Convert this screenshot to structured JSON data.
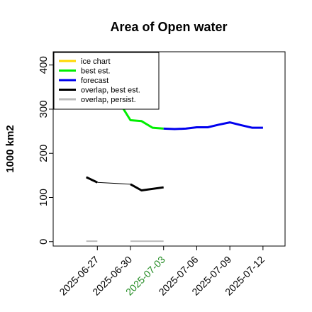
{
  "chart_data": {
    "type": "line",
    "title": "Area of Open water",
    "ylabel": "1000 km2",
    "xlabel": "",
    "ylim": [
      -10,
      430
    ],
    "y_ticks": [
      0,
      100,
      200,
      300,
      400
    ],
    "x_range": [
      "2025-06-23",
      "2025-07-14"
    ],
    "x_ticks": [
      {
        "date": "2025-06-27",
        "label": "2025-06-27",
        "color": "#000000"
      },
      {
        "date": "2025-06-30",
        "label": "2025-06-30",
        "color": "#000000"
      },
      {
        "date": "2025-07-03",
        "label": "2025-07-03",
        "color": "#228b22"
      },
      {
        "date": "2025-07-06",
        "label": "2025-07-06",
        "color": "#000000"
      },
      {
        "date": "2025-07-09",
        "label": "2025-07-09",
        "color": "#000000"
      },
      {
        "date": "2025-07-12",
        "label": "2025-07-12",
        "color": "#000000"
      }
    ],
    "grid": false,
    "legend_position": "top-left",
    "series": [
      {
        "name": "ice chart",
        "color": "#ffd700",
        "width": 3,
        "points": []
      },
      {
        "name": "best est.",
        "color": "#00ee00",
        "width": 3,
        "points": [
          {
            "x": "2025-06-29",
            "y": 315
          },
          {
            "x": "2025-06-30",
            "y": 275
          },
          {
            "x": "2025-07-01",
            "y": 273
          },
          {
            "x": "2025-07-02",
            "y": 258
          },
          {
            "x": "2025-07-03",
            "y": 256
          }
        ]
      },
      {
        "name": "forecast",
        "color": "#0000ee",
        "width": 3,
        "points": [
          {
            "x": "2025-07-03",
            "y": 256
          },
          {
            "x": "2025-07-04",
            "y": 255
          },
          {
            "x": "2025-07-05",
            "y": 256
          },
          {
            "x": "2025-07-06",
            "y": 259
          },
          {
            "x": "2025-07-07",
            "y": 259
          },
          {
            "x": "2025-07-08",
            "y": 265
          },
          {
            "x": "2025-07-09",
            "y": 270
          },
          {
            "x": "2025-07-10",
            "y": 264
          },
          {
            "x": "2025-07-11",
            "y": 258
          },
          {
            "x": "2025-07-12",
            "y": 258
          }
        ]
      },
      {
        "name": "overlap, best est.",
        "color": "#000000",
        "width": 3,
        "segments": [
          [
            {
              "x": "2025-06-26",
              "y": 146
            },
            {
              "x": "2025-06-27",
              "y": 134
            }
          ],
          [
            {
              "x": "2025-06-30",
              "y": 130
            },
            {
              "x": "2025-07-01",
              "y": 116
            },
            {
              "x": "2025-07-03",
              "y": 123
            }
          ]
        ],
        "connector": [
          {
            "x": "2025-06-27",
            "y": 134
          },
          {
            "x": "2025-06-30",
            "y": 130
          }
        ]
      },
      {
        "name": "overlap, persist.",
        "color": "#bbbbbb",
        "width": 2,
        "segments": [
          [
            {
              "x": "2025-06-26",
              "y": 1
            },
            {
              "x": "2025-06-27",
              "y": 1
            }
          ],
          [
            {
              "x": "2025-06-30",
              "y": 1
            },
            {
              "x": "2025-07-03",
              "y": 1
            }
          ]
        ]
      }
    ]
  }
}
